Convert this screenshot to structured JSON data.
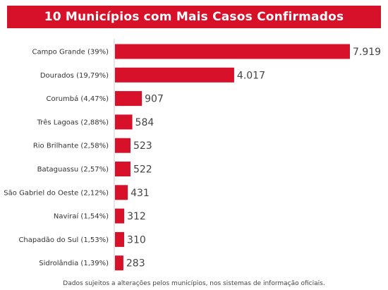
{
  "colors": {
    "bar": "#d7112a",
    "banner": "#d7112a",
    "label": "#333333",
    "value": "#444444",
    "axis": "#cccccc"
  },
  "chart_data": {
    "type": "bar",
    "orientation": "horizontal",
    "title": "10 Municípios com Mais Casos Confirmados",
    "categories": [
      "Campo Grande (39%)",
      "Dourados (19,79%)",
      "Corumbá (4,47%)",
      "Três Lagoas (2,88%)",
      "Rio Brilhante (2,58%)",
      "Bataguassu (2,57%)",
      "São Gabriel do Oeste (2,12%)",
      "Naviraí (1,54%)",
      "Chapadão do Sul (1,53%)",
      "Sidrolândia (1,39%)"
    ],
    "values": [
      7919,
      4017,
      907,
      584,
      523,
      522,
      431,
      312,
      310,
      283
    ],
    "value_labels": [
      "7.919",
      "4.017",
      "907",
      "584",
      "523",
      "522",
      "431",
      "312",
      "310",
      "283"
    ],
    "xlim": [
      0,
      7919
    ],
    "grid": false,
    "legend": "none"
  },
  "footnote": "Dados sujeitos a alterações pelos municípios, nos sistemas de informação oficiais."
}
